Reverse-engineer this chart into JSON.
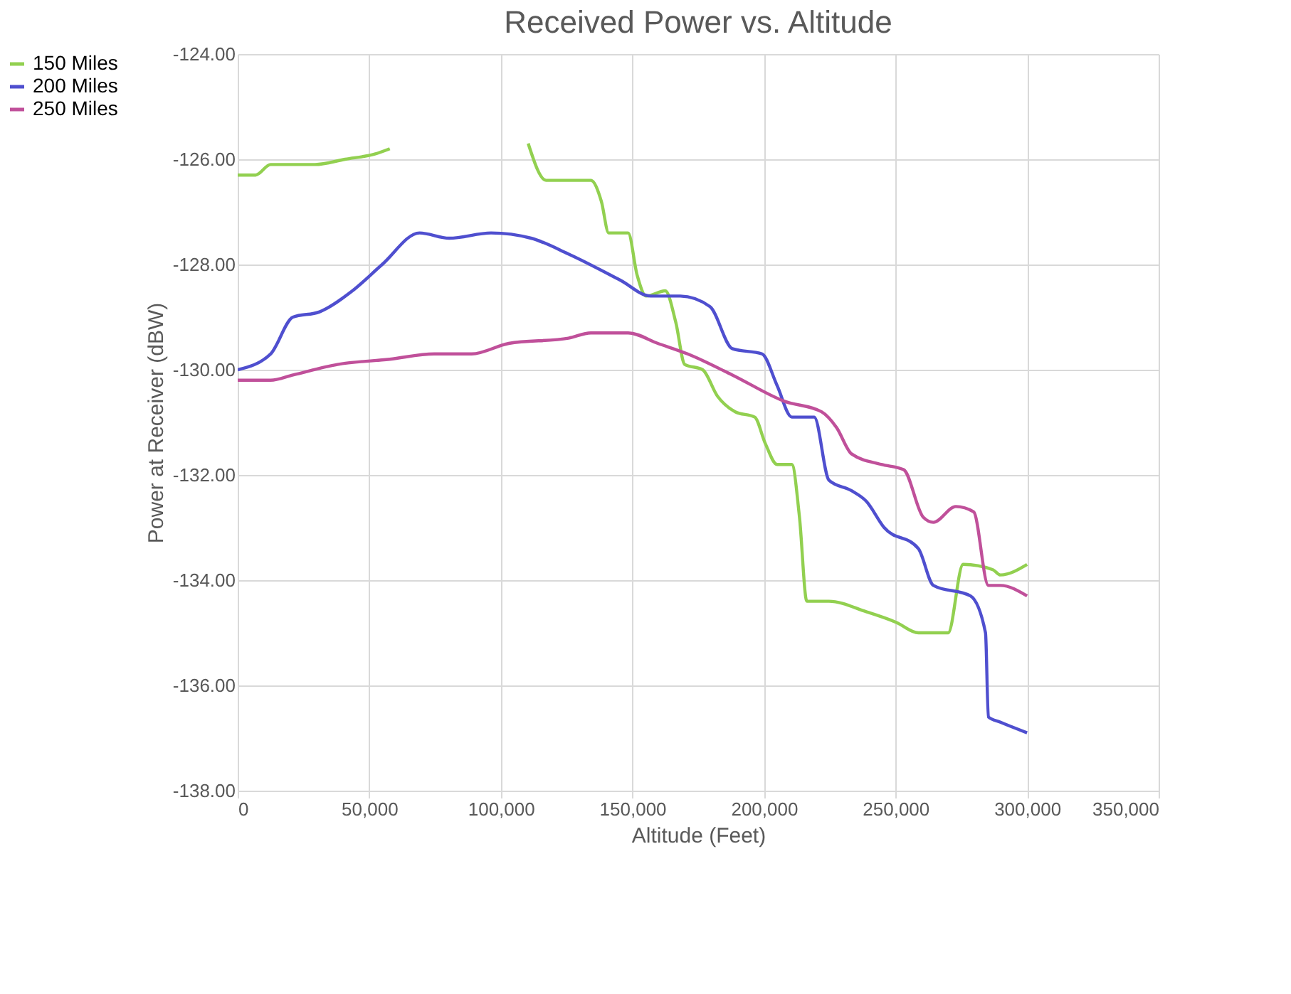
{
  "chart_data": {
    "type": "line",
    "title": "Received Power vs. Altitude",
    "xlabel": "Altitude (Feet)",
    "ylabel": "Power at Receiver (dBW)",
    "xlim": [
      0,
      350000
    ],
    "ylim": [
      -138,
      -124
    ],
    "xticks": [
      0,
      {
        "value": 50000,
        "label": "50,000"
      },
      {
        "value": 100000,
        "label": "100,000"
      },
      {
        "value": 150000,
        "label": "150,000"
      },
      {
        "value": 200000,
        "label": "200,000"
      },
      {
        "value": 250000,
        "label": "250,000"
      },
      {
        "value": 300000,
        "label": "300,000"
      },
      {
        "value": 350000,
        "label": "350,000"
      }
    ],
    "yticks": [
      {
        "value": -138,
        "label": "-138.00"
      },
      {
        "value": -136,
        "label": "-136.00"
      },
      {
        "value": -134,
        "label": "-134.00"
      },
      {
        "value": -132,
        "label": "-132.00"
      },
      {
        "value": -130,
        "label": "-130.00"
      },
      {
        "value": -128,
        "label": "-128.00"
      },
      {
        "value": -126,
        "label": "-126.00"
      },
      {
        "value": -124,
        "label": "-124.00"
      }
    ],
    "grid": true,
    "legend": "left",
    "marker": "none",
    "line_style": "solid",
    "series": [
      {
        "name": "150 Miles",
        "color": "#92d050",
        "x": [
          0,
          6800,
          12500,
          29400,
          40800,
          52100,
          57800,
          85000,
          110400,
          117200,
          125700,
          134200,
          138200,
          141000,
          148400,
          151800,
          155200,
          162500,
          166500,
          169900,
          176700,
          182300,
          189100,
          196500,
          200500,
          205000,
          210600,
          213500,
          216300,
          224700,
          238900,
          250200,
          258700,
          264400,
          270000,
          275700,
          287000,
          289900,
          300000
        ],
        "values": [
          -126.3,
          -126.3,
          -126.1,
          -126.1,
          -126.0,
          -125.9,
          -125.8,
          null,
          -125.7,
          -126.4,
          -126.4,
          -126.4,
          -126.8,
          -127.4,
          -127.4,
          -128.2,
          -128.6,
          -128.5,
          -129.1,
          -129.9,
          -130.0,
          -130.5,
          -130.8,
          -130.9,
          -131.4,
          -131.8,
          -131.8,
          -132.8,
          -134.4,
          -134.4,
          -134.6,
          -134.8,
          -135.0,
          -135.0,
          -135.0,
          -133.7,
          -133.8,
          -133.9,
          -133.7
        ]
      },
      {
        "name": "200 Miles",
        "color": "#4f4fcf",
        "x": [
          0,
          12500,
          21000,
          31100,
          43600,
          54900,
          69100,
          80400,
          96300,
          111500,
          125700,
          145500,
          156900,
          168200,
          179500,
          188000,
          199300,
          205000,
          210600,
          219100,
          224700,
          233300,
          238900,
          245700,
          258700,
          264400,
          278500,
          284200,
          285300,
          289900,
          300000
        ],
        "values": [
          -130.0,
          -129.7,
          -129.0,
          -128.9,
          -128.5,
          -128.0,
          -127.4,
          -127.5,
          -127.4,
          -127.5,
          -127.8,
          -128.3,
          -128.6,
          -128.6,
          -128.8,
          -129.6,
          -129.7,
          -130.3,
          -130.9,
          -130.9,
          -132.1,
          -132.3,
          -132.5,
          -133.0,
          -133.4,
          -134.1,
          -134.3,
          -135.0,
          -136.6,
          -136.7,
          -136.9
        ]
      },
      {
        "name": "250 Miles",
        "color": "#c0509a",
        "x": [
          0,
          12500,
          21000,
          37900,
          57800,
          74700,
          88900,
          103000,
          125700,
          134200,
          148400,
          159700,
          171000,
          188000,
          207800,
          221900,
          227600,
          233300,
          244600,
          253100,
          260500,
          264400,
          272900,
          279700,
          285300,
          289900,
          300000
        ],
        "values": [
          -130.2,
          -130.2,
          -130.1,
          -129.9,
          -129.8,
          -129.7,
          -129.7,
          -129.5,
          -129.4,
          -129.3,
          -129.3,
          -129.5,
          -129.7,
          -130.1,
          -130.6,
          -130.8,
          -131.1,
          -131.6,
          -131.8,
          -131.9,
          -132.8,
          -132.9,
          -132.6,
          -132.7,
          -134.1,
          -134.1,
          -134.3
        ]
      }
    ]
  }
}
